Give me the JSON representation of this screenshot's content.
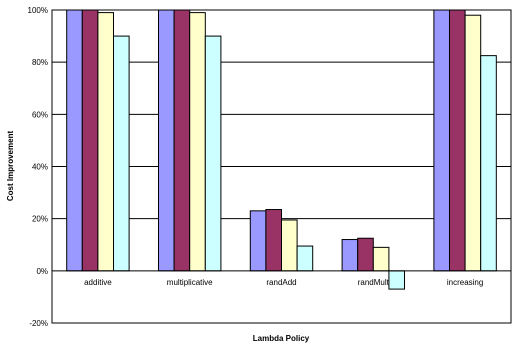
{
  "chart_data": {
    "type": "bar",
    "title": "",
    "xlabel": "Lambda Policy",
    "ylabel": "Cost Improvement",
    "categories": [
      "additive",
      "multiplicative",
      "randAdd",
      "randMult",
      "increasing"
    ],
    "series": [
      {
        "values": [
          100,
          100,
          23,
          12,
          100
        ],
        "color": "#9999ff"
      },
      {
        "values": [
          100,
          100,
          23.5,
          12.5,
          100
        ],
        "color": "#993366"
      },
      {
        "values": [
          99,
          99,
          19.5,
          9,
          98
        ],
        "color": "#ffffcc"
      },
      {
        "values": [
          90,
          90,
          9.5,
          -7,
          82.5
        ],
        "color": "#ccffff"
      }
    ],
    "ylim": [
      -20,
      100
    ],
    "yticks": [
      "-20%",
      "0%",
      "20%",
      "40%",
      "60%",
      "80%",
      "100%"
    ],
    "ytick_values": [
      -20,
      0,
      20,
      40,
      60,
      80,
      100
    ],
    "grid": true,
    "legend": "none"
  }
}
